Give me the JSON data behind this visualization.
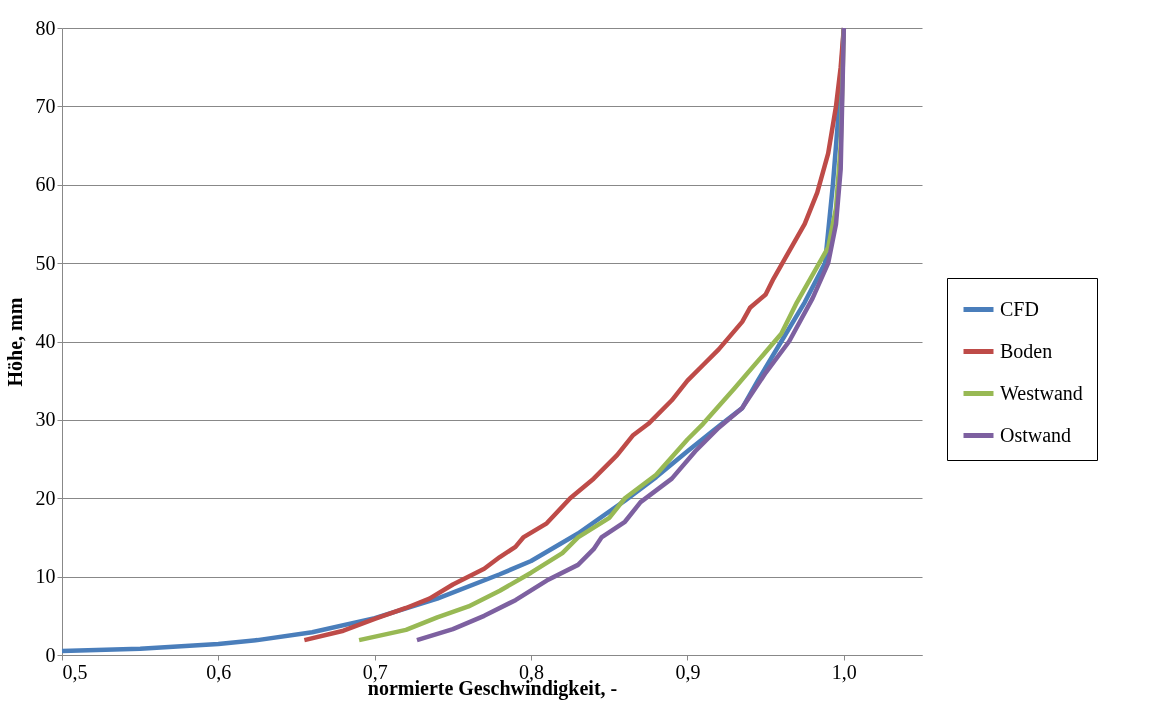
{
  "chart_data": {
    "type": "line",
    "xlabel": "normierte Geschwindigkeit, -",
    "ylabel": "Höhe, mm",
    "xlim": [
      0.5,
      1.05
    ],
    "xticks": [
      {
        "value": 0.5,
        "label": "0,5"
      },
      {
        "value": 0.6,
        "label": "0,6"
      },
      {
        "value": 0.7,
        "label": "0,7"
      },
      {
        "value": 0.8,
        "label": "0,8"
      },
      {
        "value": 0.9,
        "label": "0,9"
      },
      {
        "value": 1.0,
        "label": "1,0"
      }
    ],
    "ylim": [
      0,
      80
    ],
    "yticks": [
      0,
      10,
      20,
      30,
      40,
      50,
      60,
      70,
      80
    ],
    "grid": "y",
    "legend": "right",
    "marker": "none",
    "line_style": "solid",
    "series": [
      {
        "name": "CFD",
        "color": "#4a7ebb",
        "x": [
          0.5,
          0.55,
          0.6,
          0.625,
          0.66,
          0.7,
          0.74,
          0.78,
          0.8,
          0.83,
          0.86,
          0.88,
          0.9,
          0.92,
          0.935,
          0.945,
          0.96,
          0.975,
          0.988,
          0.993,
          0.997,
          1.0
        ],
        "values": [
          0.5,
          0.8,
          1.4,
          1.9,
          2.9,
          4.7,
          7.2,
          10.3,
          12,
          15.5,
          19.7,
          22.7,
          26,
          29.2,
          31.5,
          35,
          40,
          45,
          50,
          60,
          70,
          80
        ]
      },
      {
        "name": "Boden",
        "color": "#be4b48",
        "x": [
          0.655,
          0.68,
          0.7,
          0.72,
          0.735,
          0.75,
          0.77,
          0.78,
          0.79,
          0.795,
          0.81,
          0.825,
          0.84,
          0.855,
          0.865,
          0.875,
          0.89,
          0.9,
          0.91,
          0.92,
          0.935,
          0.94,
          0.95,
          0.955,
          0.965,
          0.975,
          0.983,
          0.99,
          0.995,
          0.998,
          1.0
        ],
        "values": [
          1.9,
          3.1,
          4.6,
          6,
          7.2,
          9,
          11,
          12.5,
          13.8,
          15,
          16.8,
          20,
          22.5,
          25.5,
          28,
          29.5,
          32.5,
          35,
          37,
          39,
          42.5,
          44.3,
          46,
          48,
          51.5,
          55,
          59,
          64,
          70,
          75,
          80
        ]
      },
      {
        "name": "Westwand",
        "color": "#98b954",
        "x": [
          0.69,
          0.72,
          0.74,
          0.76,
          0.78,
          0.8,
          0.82,
          0.83,
          0.85,
          0.86,
          0.88,
          0.9,
          0.91,
          0.93,
          0.945,
          0.96,
          0.97,
          0.98,
          0.99,
          0.995,
          0.998,
          1.0
        ],
        "values": [
          1.9,
          3.2,
          4.8,
          6.2,
          8.2,
          10.5,
          13,
          15,
          17.5,
          20,
          23,
          27.5,
          29.5,
          34,
          37.5,
          41,
          45,
          48.5,
          52,
          57,
          65,
          80
        ]
      },
      {
        "name": "Ostwand",
        "color": "#7d60a0",
        "x": [
          0.727,
          0.75,
          0.77,
          0.79,
          0.81,
          0.83,
          0.84,
          0.845,
          0.86,
          0.87,
          0.89,
          0.905,
          0.92,
          0.935,
          0.95,
          0.965,
          0.98,
          0.99,
          0.995,
          0.998,
          1.0
        ],
        "values": [
          1.9,
          3.3,
          5,
          7,
          9.5,
          11.5,
          13.5,
          15,
          17,
          19.5,
          22.5,
          26,
          29,
          31.5,
          36,
          40,
          45.5,
          50,
          55,
          62,
          80
        ]
      }
    ]
  }
}
